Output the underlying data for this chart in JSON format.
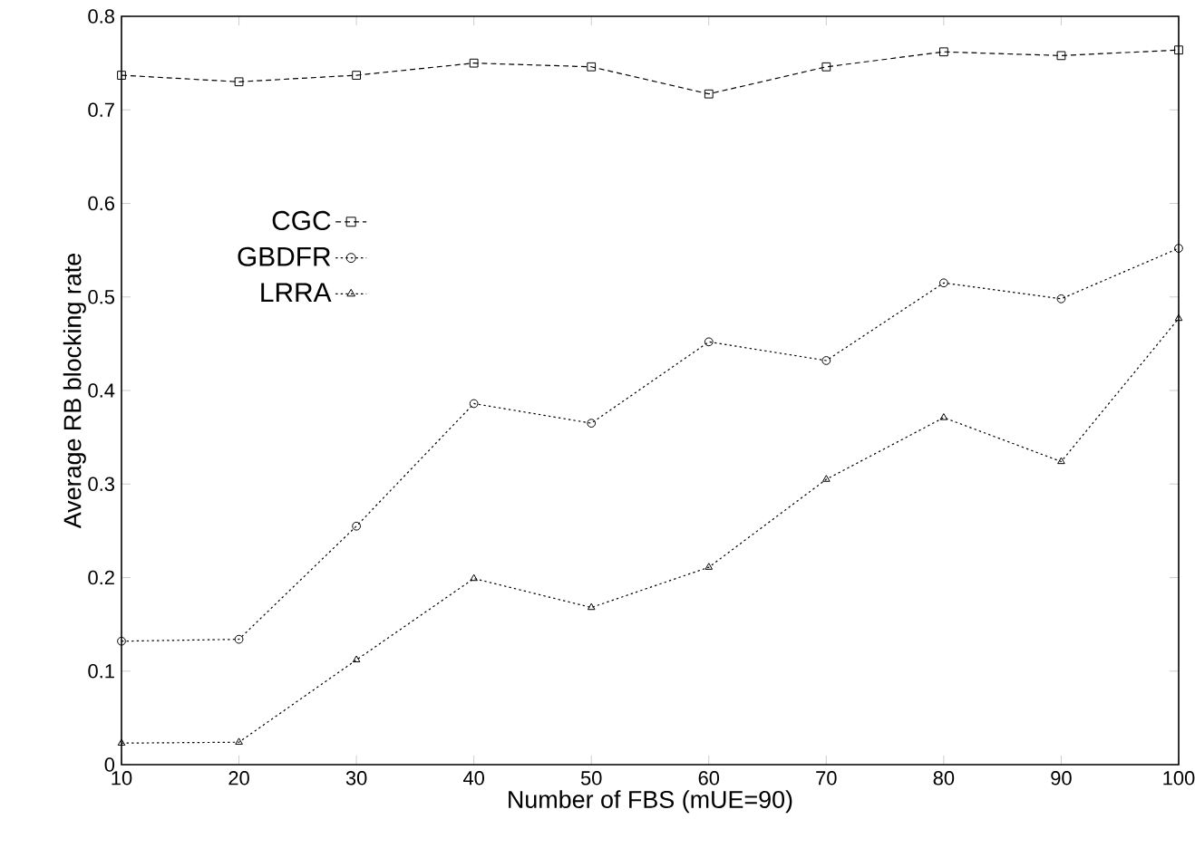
{
  "chart_data": {
    "type": "line",
    "xlabel": "Number of FBS (mUE=90)",
    "ylabel": "Average RB blocking rate",
    "x": [
      10,
      20,
      30,
      40,
      50,
      60,
      70,
      80,
      90,
      100
    ],
    "series": [
      {
        "name": "CGC",
        "color": "#000000",
        "marker": "square",
        "line_style": "dashed",
        "values": [
          0.737,
          0.73,
          0.737,
          0.75,
          0.746,
          0.717,
          0.746,
          0.762,
          0.758,
          0.764
        ]
      },
      {
        "name": "GBDFR",
        "color": "#000000",
        "marker": "circle",
        "line_style": "dotted",
        "values": [
          0.132,
          0.134,
          0.255,
          0.386,
          0.365,
          0.452,
          0.432,
          0.515,
          0.498,
          0.552
        ]
      },
      {
        "name": "LRRA",
        "color": "#000000",
        "marker": "triangle",
        "line_style": "dotted",
        "values": [
          0.023,
          0.024,
          0.112,
          0.199,
          0.168,
          0.211,
          0.305,
          0.371,
          0.324,
          0.477
        ]
      }
    ],
    "xlim": [
      10,
      100
    ],
    "ylim": [
      0,
      0.8
    ],
    "xticks": [
      10,
      20,
      30,
      40,
      50,
      60,
      70,
      80,
      90,
      100
    ],
    "yticks": [
      0,
      0.1,
      0.2,
      0.3,
      0.4,
      0.5,
      0.6,
      0.7,
      0.8
    ],
    "grid": false,
    "legend": "left"
  }
}
